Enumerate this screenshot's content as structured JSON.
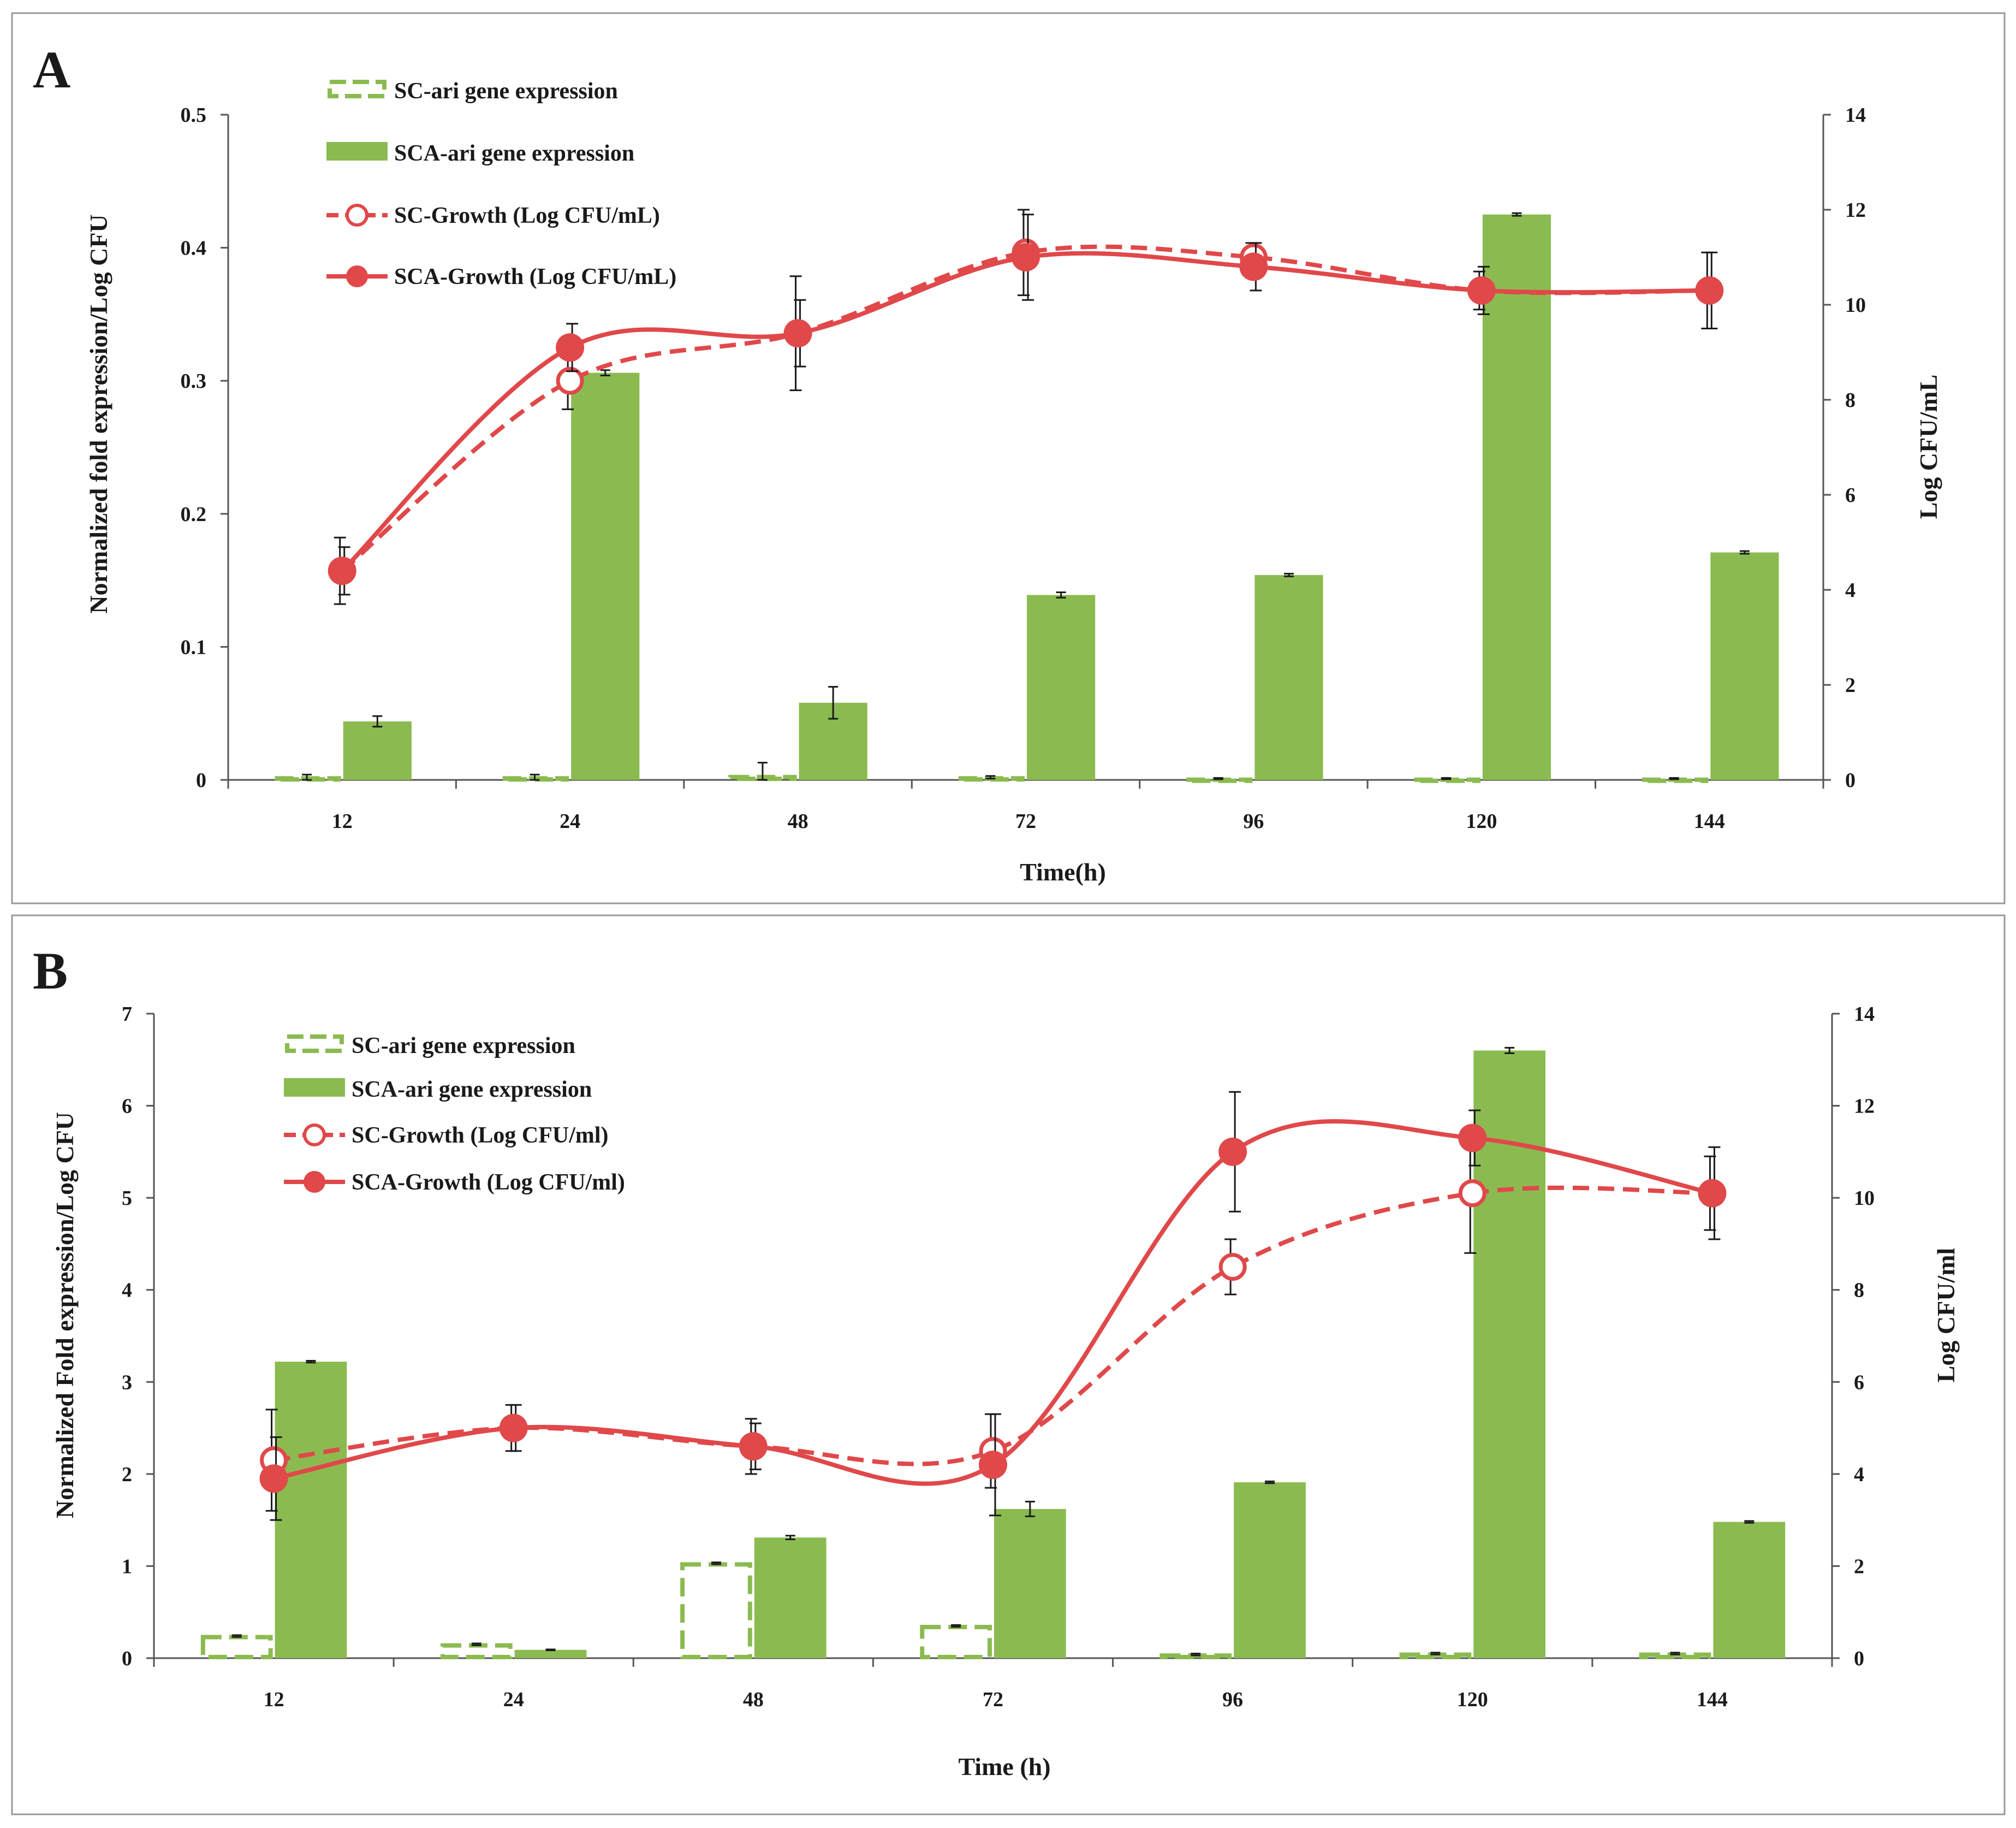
{
  "colors": {
    "bar_green": "#8bbb50",
    "line_red": "#e0484a",
    "frame_gray": "#9a9a9a"
  },
  "chart_data": [
    {
      "panel": "A",
      "type": "bar",
      "categories": [
        "12",
        "24",
        "48",
        "72",
        "96",
        "120",
        "144"
      ],
      "xlabel": "Time(h)",
      "ylabel": "Normalized fold expression/Log CFU",
      "y2label": "Log CFU/mL",
      "ylim": [
        0,
        0.5
      ],
      "y2lim": [
        0,
        14
      ],
      "yticks": [
        "0",
        "0.1",
        "0.2",
        "0.3",
        "0.4",
        "0.5"
      ],
      "y2ticks": [
        "0",
        "2",
        "4",
        "6",
        "8",
        "10",
        "12",
        "14"
      ],
      "legend": [
        "SC-ari gene expression",
        "SCA-ari gene expression",
        "SC-Growth (Log CFU/mL)",
        "SCA-Growth (Log CFU/mL)"
      ],
      "series": [
        {
          "name": "SC-ari gene expression",
          "kind": "bar-dashed",
          "axis": "left",
          "values": [
            0.002,
            0.002,
            0.003,
            0.002,
            0.001,
            0.001,
            0.001
          ],
          "errors": [
            0.002,
            0.002,
            0.01,
            0.001,
            0.0005,
            0.0005,
            0.0005
          ]
        },
        {
          "name": "SCA-ari gene expression",
          "kind": "bar",
          "axis": "left",
          "values": [
            0.044,
            0.306,
            0.058,
            0.139,
            0.154,
            0.425,
            0.171
          ],
          "errors": [
            0.004,
            0.002,
            0.012,
            0.002,
            0.001,
            0.001,
            0.001
          ]
        },
        {
          "name": "SC-Growth (Log CFU/mL)",
          "kind": "line-dashed",
          "axis": "right",
          "values": [
            4.4,
            8.4,
            9.4,
            11.1,
            11.0,
            10.3,
            10.3
          ],
          "errors": [
            0.7,
            0.6,
            1.2,
            0.9,
            0.3,
            0.4,
            0.8
          ]
        },
        {
          "name": "SCA-Growth (Log CFU/mL)",
          "kind": "line",
          "axis": "right",
          "values": [
            4.4,
            9.1,
            9.4,
            11.0,
            10.8,
            10.3,
            10.3
          ],
          "errors": [
            0.5,
            0.5,
            0.7,
            0.9,
            0.5,
            0.5,
            0.8
          ]
        }
      ]
    },
    {
      "panel": "B",
      "type": "bar",
      "categories": [
        "12",
        "24",
        "48",
        "72",
        "96",
        "120",
        "144"
      ],
      "xlabel": "Time (h)",
      "ylabel": "Normalized Fold expression/Log CFU",
      "y2label": "Log CFU/ml",
      "ylim": [
        0,
        7
      ],
      "y2lim": [
        0,
        14
      ],
      "yticks": [
        "0",
        "1",
        "2",
        "3",
        "4",
        "5",
        "6",
        "7"
      ],
      "y2ticks": [
        "0",
        "2",
        "4",
        "6",
        "8",
        "10",
        "12",
        "14"
      ],
      "legend": [
        "SC-ari gene expression",
        "SCA-ari gene expression",
        "SC-Growth (Log CFU/ml)",
        "SCA-Growth (Log CFU/ml)"
      ],
      "series": [
        {
          "name": "SC-ari gene expression",
          "kind": "bar-dashed",
          "axis": "left",
          "values": [
            0.24,
            0.15,
            1.03,
            0.35,
            0.04,
            0.05,
            0.05
          ],
          "errors": [
            0.01,
            0.01,
            0.01,
            0.01,
            0.01,
            0.01,
            0.01
          ]
        },
        {
          "name": "SCA-ari gene expression",
          "kind": "bar",
          "axis": "left",
          "values": [
            3.22,
            0.09,
            1.31,
            1.62,
            1.91,
            6.6,
            1.48
          ],
          "errors": [
            0.01,
            0.005,
            0.02,
            0.08,
            0.01,
            0.03,
            0.01
          ]
        },
        {
          "name": "SC-Growth (Log CFU/ml)",
          "kind": "line-dashed",
          "axis": "right",
          "values": [
            4.3,
            5.0,
            4.6,
            4.5,
            8.5,
            10.1,
            10.1
          ],
          "errors": [
            1.1,
            0.5,
            0.6,
            0.8,
            0.6,
            1.3,
            0.8
          ]
        },
        {
          "name": "SCA-Growth (Log CFU/ml)",
          "kind": "line",
          "axis": "right",
          "values": [
            3.9,
            5.0,
            4.6,
            4.2,
            11.0,
            11.3,
            10.1
          ],
          "errors": [
            0.9,
            0.5,
            0.5,
            1.1,
            1.3,
            0.6,
            1.0
          ]
        }
      ]
    }
  ]
}
